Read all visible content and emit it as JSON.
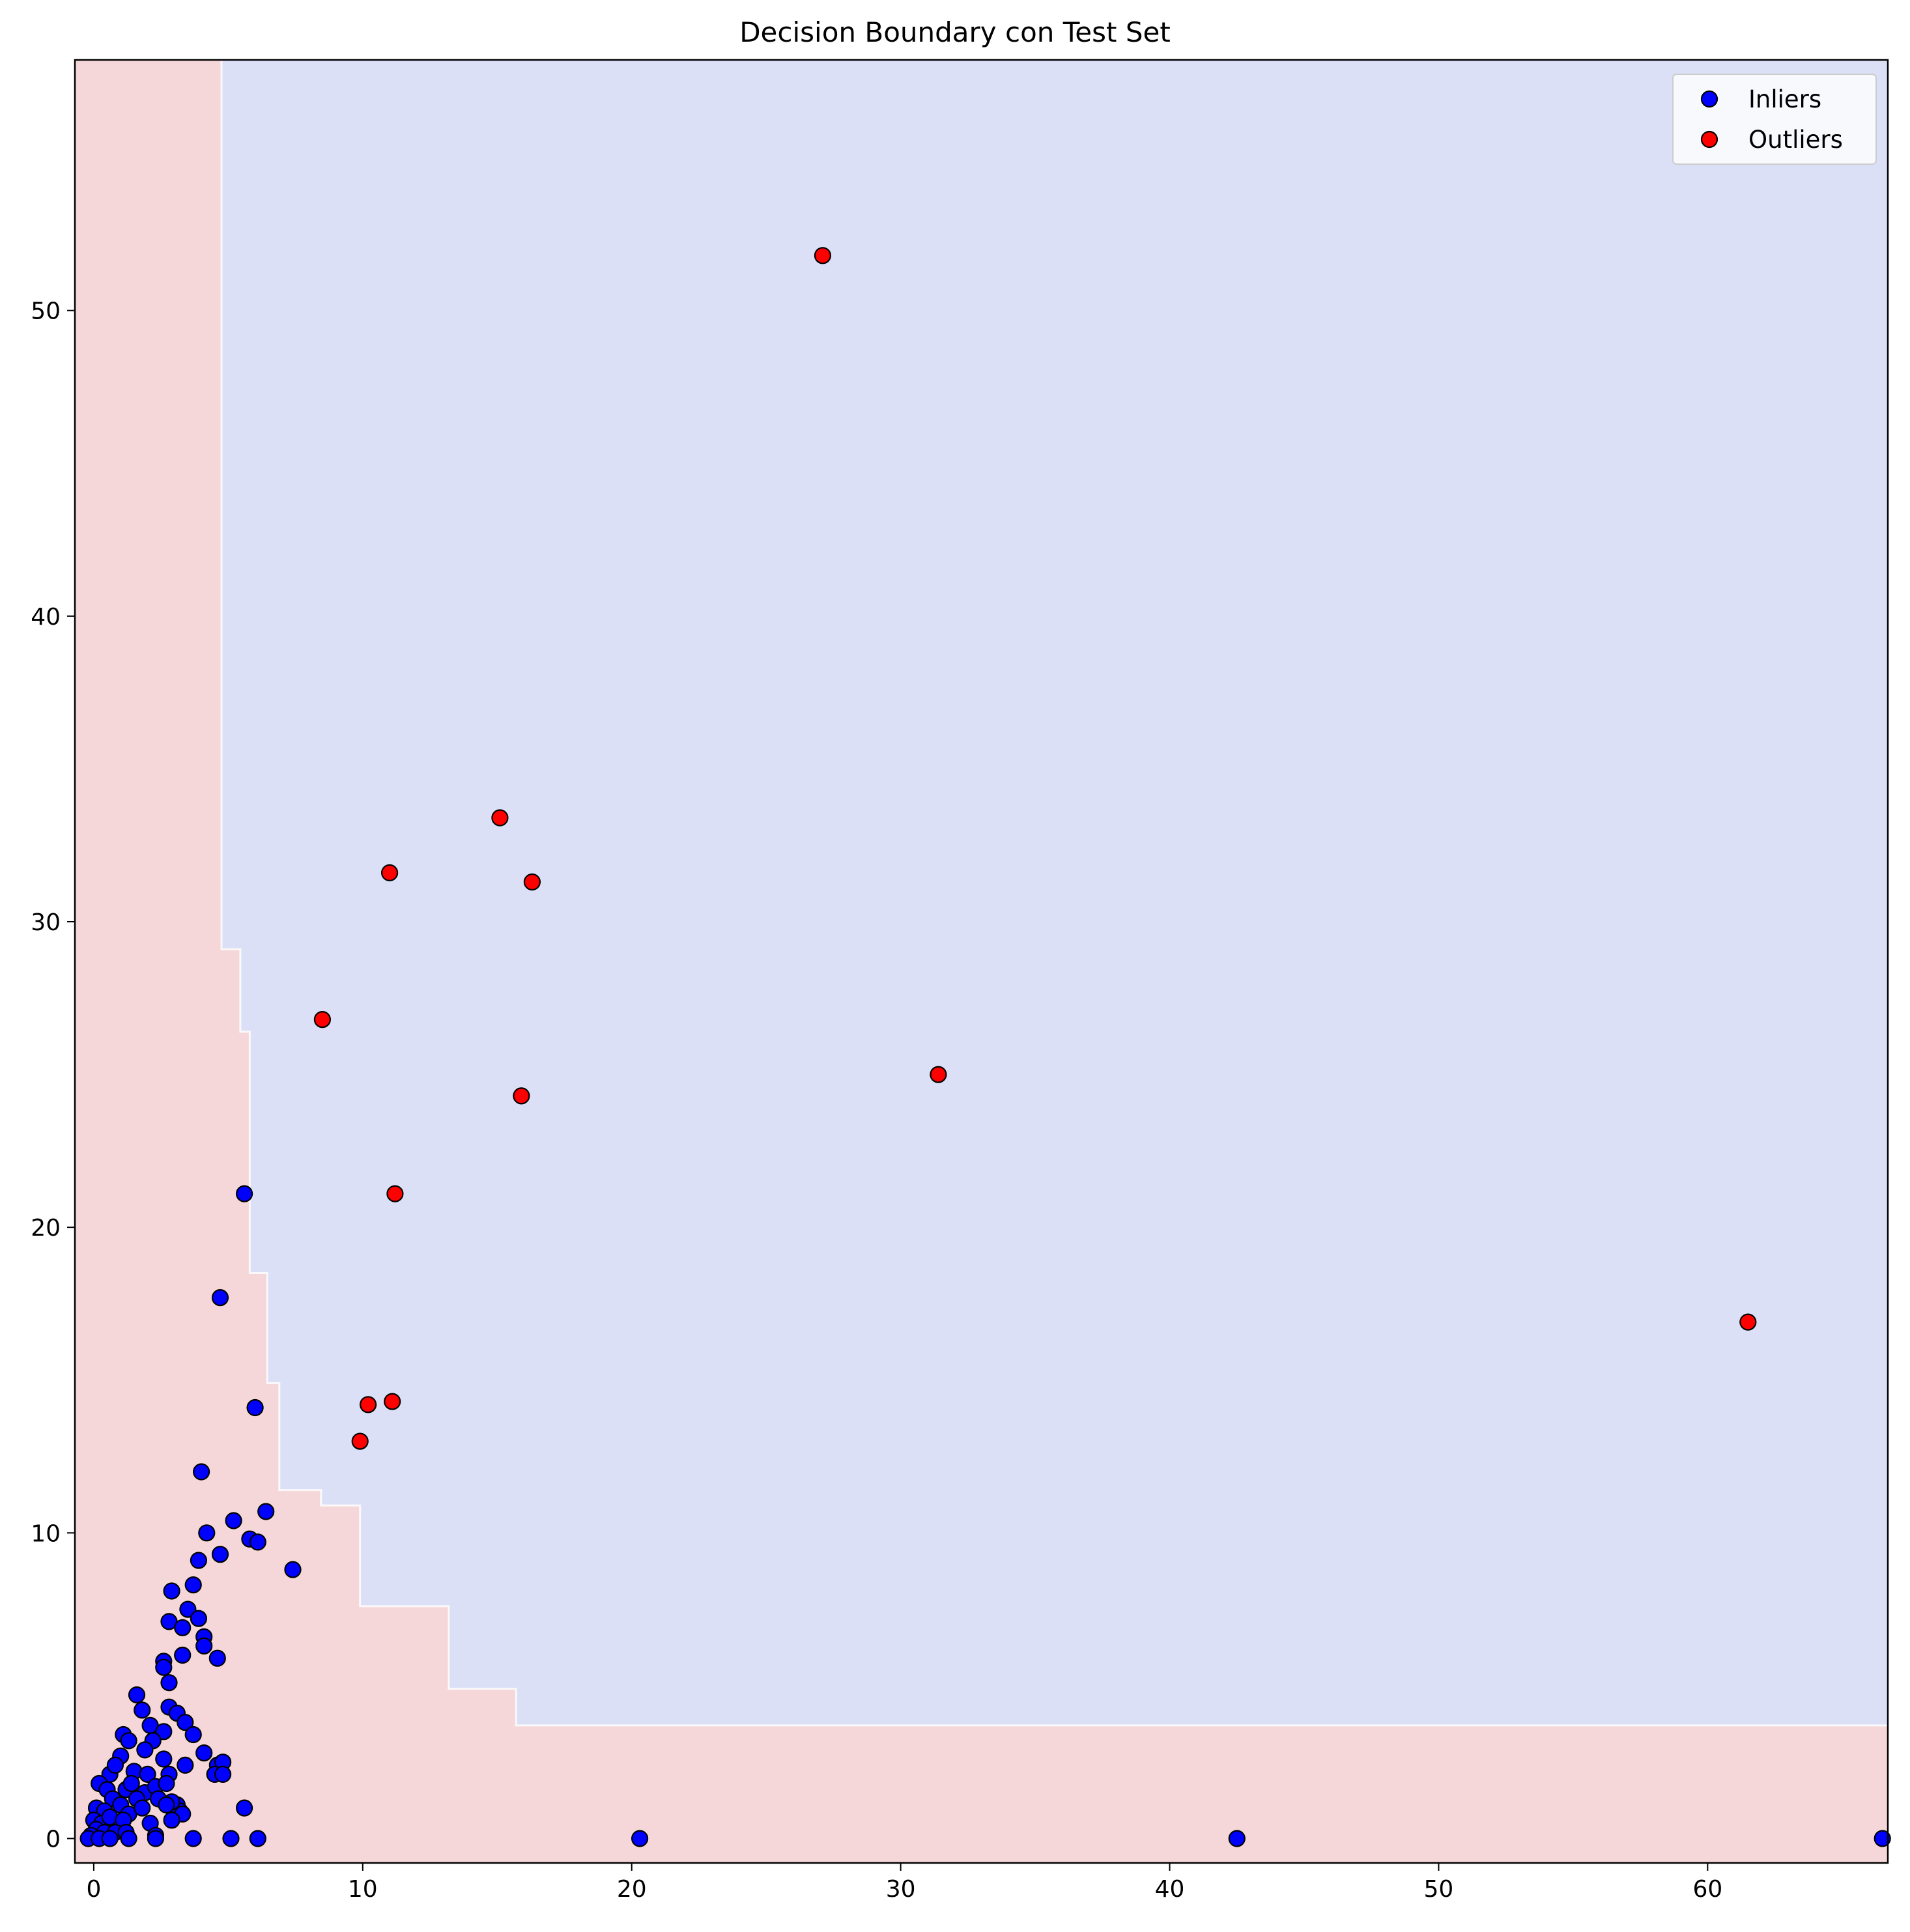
{
  "chart_data": {
    "type": "scatter",
    "title": "Decision Boundary con Test Set",
    "xlabel": "",
    "ylabel": "",
    "xlim": [
      -0.7,
      66.7
    ],
    "ylim": [
      -0.8,
      58.2
    ],
    "xticks": [
      0,
      10,
      20,
      30,
      40,
      50,
      60
    ],
    "yticks": [
      0,
      10,
      20,
      30,
      40,
      50
    ],
    "grid": false,
    "legend_position": "top-right",
    "colors": {
      "inlier_region": "#dce0f6",
      "outlier_region": "#f5d7d9",
      "boundary": "#ffffff",
      "inliers": "#0000ff",
      "outliers": "#ff0000",
      "marker_edge": "#000000"
    },
    "decision_boundary": [
      [
        4.75,
        58.2
      ],
      [
        4.75,
        29.1
      ],
      [
        5.45,
        29.1
      ],
      [
        5.45,
        26.4
      ],
      [
        5.8,
        26.4
      ],
      [
        5.8,
        18.5
      ],
      [
        6.45,
        18.5
      ],
      [
        6.45,
        14.9
      ],
      [
        6.9,
        14.9
      ],
      [
        6.9,
        11.4
      ],
      [
        8.45,
        11.4
      ],
      [
        8.45,
        10.9
      ],
      [
        9.9,
        10.9
      ],
      [
        9.9,
        7.6
      ],
      [
        13.2,
        7.6
      ],
      [
        13.2,
        4.9
      ],
      [
        15.7,
        4.9
      ],
      [
        15.7,
        3.7
      ],
      [
        66.7,
        3.7
      ]
    ],
    "series": [
      {
        "name": "Inliers",
        "points": [
          [
            5.6,
            21.1
          ],
          [
            4.7,
            17.7
          ],
          [
            6.0,
            14.1
          ],
          [
            4.0,
            12.0
          ],
          [
            6.4,
            10.7
          ],
          [
            5.2,
            10.4
          ],
          [
            4.2,
            10.0
          ],
          [
            5.8,
            9.8
          ],
          [
            6.1,
            9.7
          ],
          [
            4.7,
            9.3
          ],
          [
            3.9,
            9.1
          ],
          [
            7.4,
            8.8
          ],
          [
            3.7,
            8.3
          ],
          [
            2.9,
            8.1
          ],
          [
            3.5,
            7.5
          ],
          [
            3.9,
            7.2
          ],
          [
            2.8,
            7.1
          ],
          [
            3.3,
            6.9
          ],
          [
            4.1,
            6.6
          ],
          [
            4.1,
            6.3
          ],
          [
            3.3,
            6.0
          ],
          [
            4.6,
            5.9
          ],
          [
            2.6,
            5.8
          ],
          [
            2.6,
            5.6
          ],
          [
            2.8,
            5.1
          ],
          [
            1.6,
            4.7
          ],
          [
            1.8,
            4.2
          ],
          [
            2.8,
            4.3
          ],
          [
            3.1,
            4.1
          ],
          [
            3.4,
            3.8
          ],
          [
            2.1,
            3.7
          ],
          [
            1.1,
            3.4
          ],
          [
            3.7,
            3.4
          ],
          [
            2.6,
            3.5
          ],
          [
            2.2,
            3.2
          ],
          [
            1.3,
            3.2
          ],
          [
            4.1,
            2.8
          ],
          [
            3.4,
            2.4
          ],
          [
            4.6,
            2.4
          ],
          [
            4.8,
            2.5
          ],
          [
            2.6,
            2.6
          ],
          [
            1.9,
            2.9
          ],
          [
            1.0,
            2.7
          ],
          [
            0.6,
            2.1
          ],
          [
            0.8,
            2.4
          ],
          [
            1.5,
            2.2
          ],
          [
            2.0,
            2.1
          ],
          [
            2.8,
            2.1
          ],
          [
            4.5,
            2.1
          ],
          [
            4.8,
            2.1
          ],
          [
            0.2,
            1.8
          ],
          [
            0.5,
            1.6
          ],
          [
            1.2,
            1.6
          ],
          [
            1.4,
            1.8
          ],
          [
            1.9,
            1.5
          ],
          [
            2.3,
            1.7
          ],
          [
            2.7,
            1.8
          ],
          [
            0.7,
            1.3
          ],
          [
            1.0,
            1.1
          ],
          [
            1.6,
            1.3
          ],
          [
            2.4,
            1.3
          ],
          [
            3.1,
            1.1
          ],
          [
            3.2,
            0.9
          ],
          [
            2.9,
            1.2
          ],
          [
            2.7,
            1.1
          ],
          [
            0.1,
            1.0
          ],
          [
            0.4,
            0.9
          ],
          [
            1.3,
            0.8
          ],
          [
            1.8,
            1.0
          ],
          [
            3.3,
            0.8
          ],
          [
            5.6,
            1.0
          ],
          [
            0.0,
            0.6
          ],
          [
            0.3,
            0.5
          ],
          [
            0.6,
            0.7
          ],
          [
            1.1,
            0.6
          ],
          [
            2.1,
            0.5
          ],
          [
            2.9,
            0.6
          ],
          [
            0.1,
            0.3
          ],
          [
            0.4,
            0.2
          ],
          [
            0.8,
            0.2
          ],
          [
            1.2,
            0.2
          ],
          [
            2.3,
            0.1
          ],
          [
            -0.1,
            0.1
          ],
          [
            -0.2,
            0.0
          ],
          [
            0.2,
            0.0
          ],
          [
            0.6,
            0.0
          ],
          [
            1.3,
            0.0
          ],
          [
            2.3,
            0.0
          ],
          [
            3.7,
            0.0
          ],
          [
            5.1,
            0.0
          ],
          [
            6.1,
            0.0
          ],
          [
            20.3,
            0.0
          ],
          [
            42.5,
            0.0
          ],
          [
            66.5,
            0.0
          ]
        ]
      },
      {
        "name": "Outliers",
        "points": [
          [
            27.1,
            51.8
          ],
          [
            15.1,
            33.4
          ],
          [
            11.0,
            31.6
          ],
          [
            16.3,
            31.3
          ],
          [
            8.5,
            26.8
          ],
          [
            31.4,
            25.0
          ],
          [
            15.9,
            24.3
          ],
          [
            11.2,
            21.1
          ],
          [
            61.5,
            16.9
          ],
          [
            10.2,
            14.2
          ],
          [
            11.1,
            14.3
          ],
          [
            9.9,
            13.0
          ]
        ]
      }
    ]
  }
}
